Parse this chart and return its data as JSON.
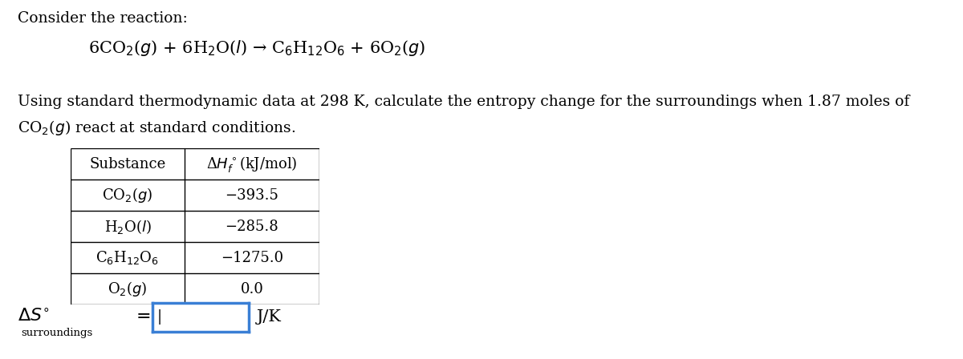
{
  "title_text": "Consider the reaction:",
  "reaction": "6CO$_2$($g$) + 6H$_2$O($l$) → C$_6$H$_{12}$O$_6$ + 6O$_2$($g$)",
  "description_line1": "Using standard thermodynamic data at 298 K, calculate the entropy change for the surroundings when 1.87 moles of",
  "description_line2": "CO$_2$($g$) react at standard conditions.",
  "table_substances": [
    "CO$_2$($g$)",
    "H$_2$O($l$)",
    "C$_6$H$_{12}$O$_6$",
    "O$_2$($g$)"
  ],
  "table_values": [
    "−393.5",
    "−285.8",
    "−1275.0",
    "0.0"
  ],
  "col_header_substance": "Substance",
  "col_header_value": "Δ$H_f^\\circ$(kJ/mol)",
  "answer_delta": "Δ",
  "answer_S": "$S$",
  "answer_sup": "o",
  "answer_subscript": "surroundings",
  "answer_units": "J/K",
  "bg_color": "#ffffff",
  "text_color": "#000000",
  "table_border_color": "#000000",
  "input_box_color": "#3a7fd5",
  "font_size_title": 13.5,
  "font_size_reaction": 15,
  "font_size_body": 13.5,
  "font_size_table": 13,
  "font_size_answer": 16
}
